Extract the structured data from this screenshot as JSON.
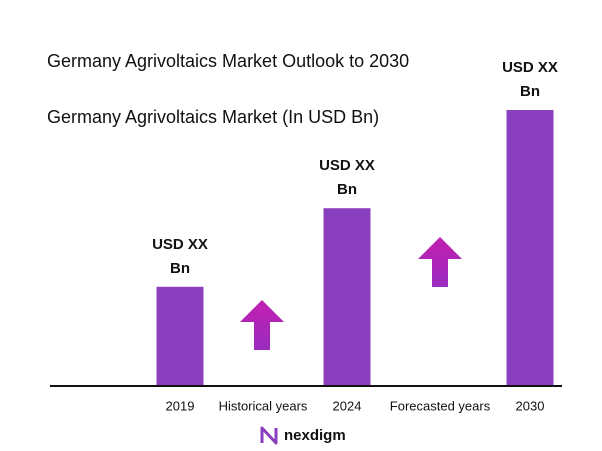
{
  "chart_data": {
    "type": "bar",
    "title": "Germany Agrivoltaics Market Outlook to 2030",
    "subtitle": "Germany Agrivoltaics Market (In USD Bn)",
    "categories": [
      "2019",
      "2024",
      "2030"
    ],
    "values": [
      1.0,
      1.8,
      2.8
    ],
    "value_labels": [
      "USD XX Bn",
      "USD XX Bn",
      "USD XX Bn"
    ],
    "color": "#8a3fbf",
    "annotations": [
      "Historical years",
      "Forecasted years"
    ]
  },
  "brand": "nexdigm"
}
